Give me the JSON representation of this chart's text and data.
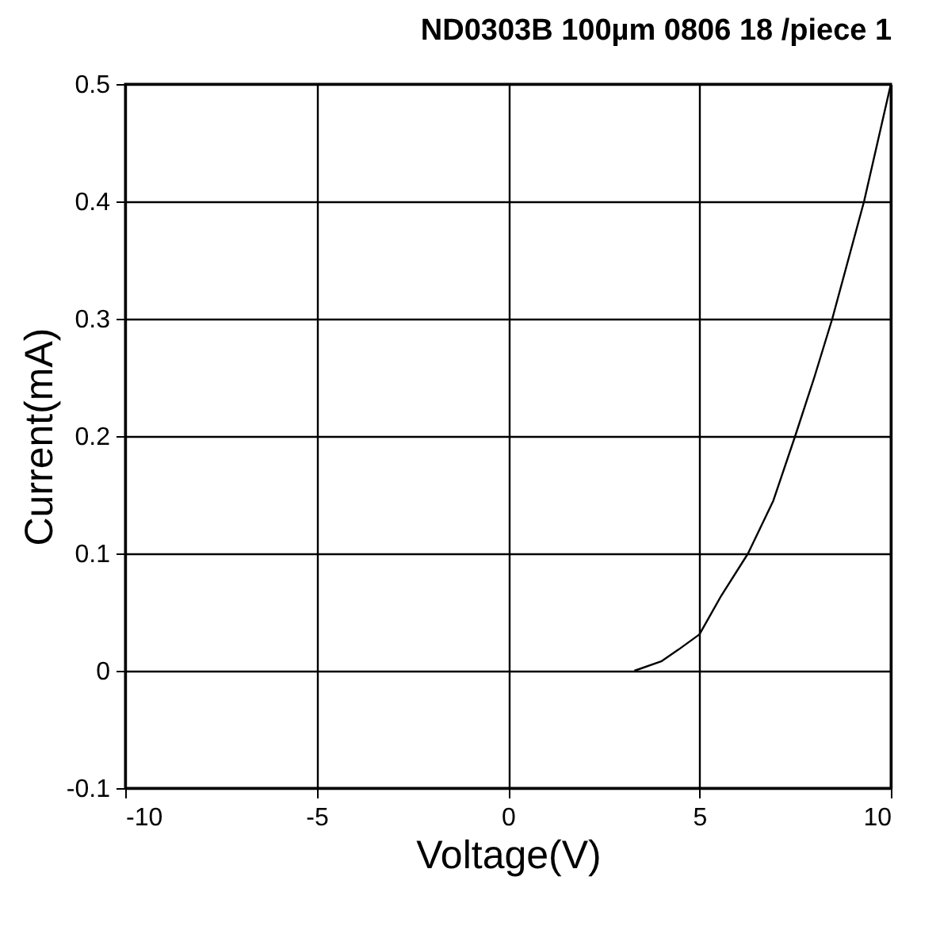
{
  "chart_data": {
    "type": "line",
    "title": "ND0303B 100µm  0806  18 /piece 1",
    "xlabel": "Voltage(V)",
    "ylabel": "Current(mA)",
    "series": [
      {
        "color": "#000000",
        "x": [
          3.3,
          4.0,
          4.45,
          5.0,
          5.57,
          6.27,
          6.93,
          7.5,
          8.0,
          8.47,
          9.3,
          10.0
        ],
        "values": [
          0.0,
          0.008,
          0.018,
          0.031,
          0.064,
          0.1,
          0.145,
          0.2,
          0.25,
          0.3,
          0.4,
          0.5
        ]
      }
    ],
    "xlim": [
      -10,
      10
    ],
    "xticks": [
      {
        "value": -10,
        "label": "-10"
      },
      {
        "value": -5,
        "label": "-5"
      },
      {
        "value": 0,
        "label": "0"
      },
      {
        "value": 5,
        "label": "5"
      },
      {
        "value": 10,
        "label": "10"
      }
    ],
    "ylim": [
      -0.1,
      0.5
    ],
    "yticks": [
      {
        "value": -0.1,
        "label": "-0.1"
      },
      {
        "value": 0,
        "label": "0"
      },
      {
        "value": 0.1,
        "label": "0.1"
      },
      {
        "value": 0.2,
        "label": "0.2"
      },
      {
        "value": 0.3,
        "label": "0.3"
      },
      {
        "value": 0.4,
        "label": "0.4"
      },
      {
        "value": 0.5,
        "label": "0.5"
      }
    ],
    "grid": true,
    "marker": "none",
    "line_style": "solid"
  }
}
